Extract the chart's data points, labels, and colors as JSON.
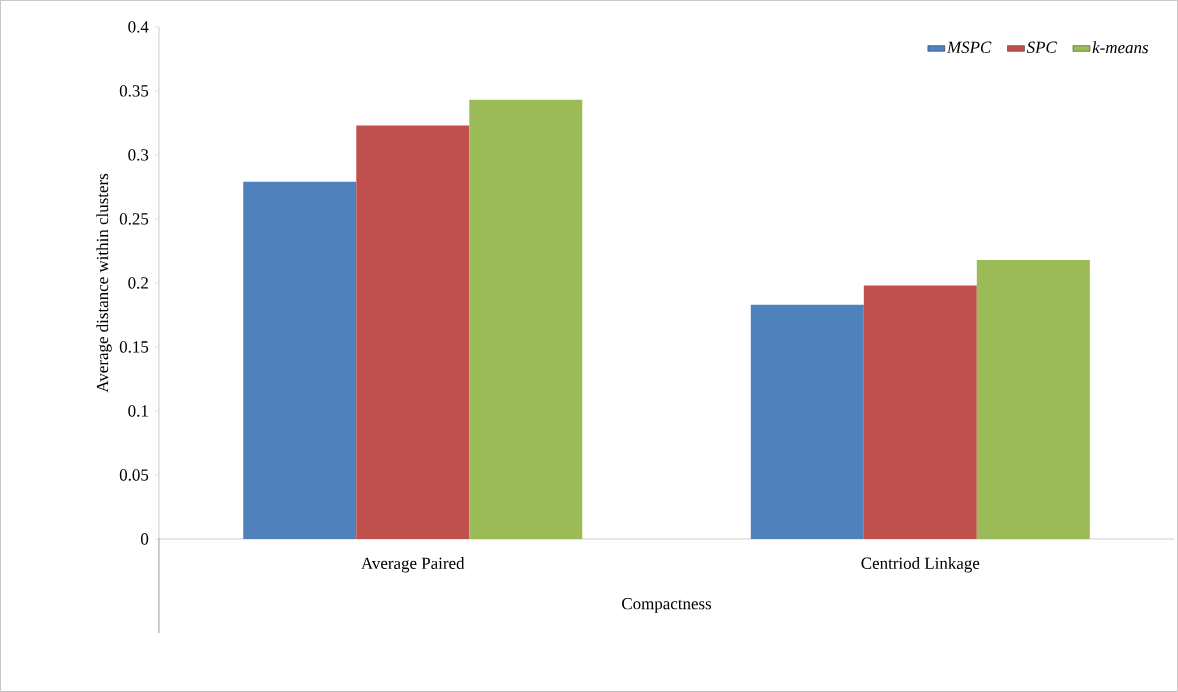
{
  "chart_data": {
    "type": "bar",
    "xlabel": "Compactness",
    "ylabel": "Average distance within clusters",
    "categories": [
      "Average Paired",
      "Centriod Linkage"
    ],
    "series": [
      {
        "name": "MSPC",
        "color": "#4f81bd",
        "values": [
          0.279,
          0.183
        ]
      },
      {
        "name": "SPC",
        "color": "#c0504d",
        "values": [
          0.323,
          0.198
        ]
      },
      {
        "name": "k-means",
        "color": "#9bbb59",
        "values": [
          0.343,
          0.218
        ]
      }
    ],
    "ylim": [
      0,
      0.4
    ],
    "yticks": [
      0,
      0.05,
      0.1,
      0.15,
      0.2,
      0.25,
      0.3,
      0.35,
      0.4
    ],
    "grid": false,
    "legend": "top right"
  }
}
